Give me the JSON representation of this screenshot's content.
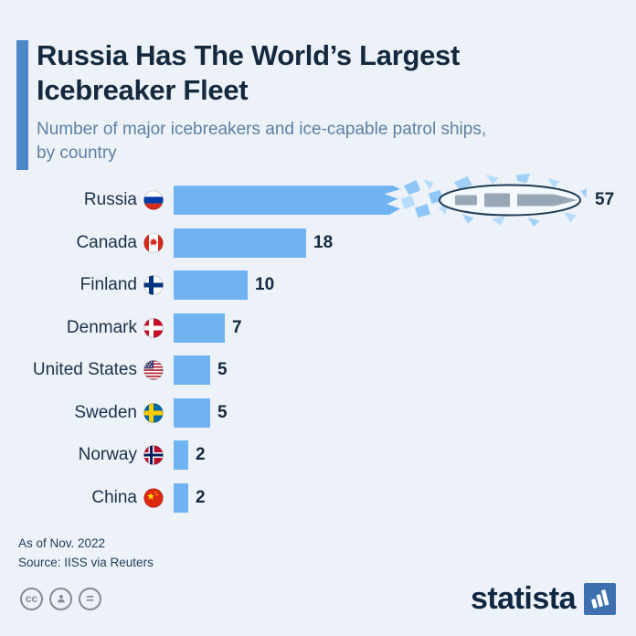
{
  "page": {
    "background_color": "#edf2f8",
    "accent_color": "#4e87c8"
  },
  "header": {
    "title_lines": [
      "Russia Has The World’s Largest",
      "Icebreaker Fleet"
    ],
    "subtitle_lines": [
      "Number of major icebreakers and ice-capable patrol ships,",
      "by country"
    ]
  },
  "chart_data": {
    "type": "bar",
    "orientation": "horizontal",
    "title": "Russia Has The World’s Largest Icebreaker Fleet",
    "subtitle": "Number of major icebreakers and ice-capable patrol ships, by country",
    "categories": [
      "Russia",
      "Canada",
      "Finland",
      "Denmark",
      "United States",
      "Sweden",
      "Norway",
      "China"
    ],
    "values": [
      57,
      18,
      10,
      7,
      5,
      5,
      2,
      2
    ],
    "flags": [
      "russia-flag-icon",
      "canada-flag-icon",
      "finland-flag-icon",
      "denmark-flag-icon",
      "usa-flag-icon",
      "sweden-flag-icon",
      "norway-flag-icon",
      "china-flag-icon"
    ],
    "bar_color": "#6fb3f3",
    "value_label_color": "#14283e",
    "xlim": [
      0,
      57
    ],
    "grid": false,
    "legend": false,
    "annotation": {
      "category": "Russia",
      "name": "icebreaker-ship-illustration",
      "description": "top-view icebreaker ship breaking through ice at end of Russia bar"
    }
  },
  "footer": {
    "as_of": "As of Nov. 2022",
    "source": "Source: IISS via Reuters"
  },
  "branding": {
    "logo_text": "statista",
    "logo_icon": "statista-chart-icon",
    "license_icons": [
      "creative-commons-icon",
      "attribution-person-icon",
      "no-derivatives-icon"
    ],
    "license_symbol_cc": "cc",
    "license_symbol_nd": "="
  }
}
